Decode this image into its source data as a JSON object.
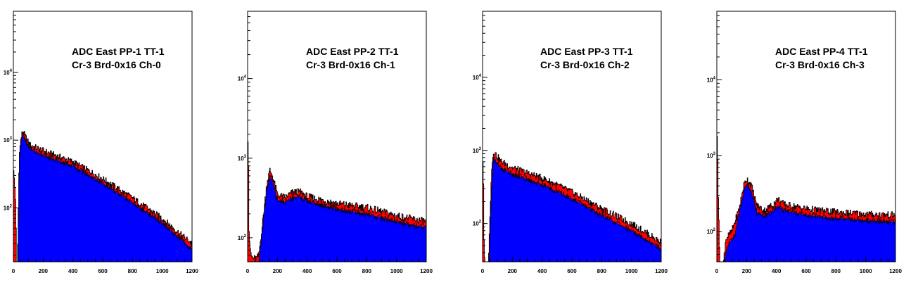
{
  "chart_data": [
    {
      "type": "area",
      "title_line1": "ADC East PP-1 TT-1",
      "title_line2": "Cr-3 Brd-0x16 Ch-0",
      "xlim": [
        0,
        1200
      ],
      "ylog": true,
      "ylim": [
        16,
        80000
      ],
      "x_ticks": [
        "0",
        "200",
        "400",
        "600",
        "800",
        "1000",
        "1200"
      ],
      "y_ticks": [
        {
          "value": 100,
          "label": "10^2"
        },
        {
          "value": 1000,
          "label": "10^3"
        },
        {
          "value": 10000,
          "label": "10^4"
        }
      ],
      "ped_peak": 320,
      "red_points": [
        [
          0,
          400
        ],
        [
          5,
          300
        ],
        [
          10,
          200
        ],
        [
          15,
          120
        ],
        [
          22,
          16
        ],
        [
          28,
          16
        ],
        [
          40,
          600
        ],
        [
          50,
          1000
        ],
        [
          60,
          1300
        ],
        [
          65,
          1350
        ],
        [
          80,
          1150
        ],
        [
          110,
          850
        ],
        [
          200,
          700
        ],
        [
          400,
          480
        ],
        [
          600,
          270
        ],
        [
          800,
          140
        ],
        [
          1000,
          70
        ],
        [
          1100,
          45
        ],
        [
          1200,
          30
        ]
      ],
      "blue_points": [
        [
          30,
          16
        ],
        [
          40,
          500
        ],
        [
          50,
          900
        ],
        [
          60,
          1150
        ],
        [
          65,
          1200
        ],
        [
          80,
          1000
        ],
        [
          110,
          750
        ],
        [
          200,
          600
        ],
        [
          400,
          420
        ],
        [
          600,
          230
        ],
        [
          800,
          120
        ],
        [
          1000,
          60
        ],
        [
          1100,
          38
        ],
        [
          1200,
          25
        ]
      ]
    },
    {
      "type": "area",
      "title_line1": "ADC East PP-2 TT-1",
      "title_line2": "Cr-3 Brd-0x16 Ch-1",
      "xlim": [
        0,
        1200
      ],
      "ylog": true,
      "ylim": [
        50,
        70000
      ],
      "x_ticks": [
        "0",
        "200",
        "400",
        "600",
        "800",
        "1000",
        "1200"
      ],
      "y_ticks": [
        {
          "value": 100,
          "label": "10^2"
        },
        {
          "value": 1000,
          "label": "10^3"
        },
        {
          "value": 10000,
          "label": "10^4"
        }
      ],
      "ped_peak": 1600,
      "red_points": [
        [
          0,
          800
        ],
        [
          5,
          300
        ],
        [
          10,
          120
        ],
        [
          15,
          80
        ],
        [
          25,
          60
        ],
        [
          40,
          55
        ],
        [
          60,
          55
        ],
        [
          75,
          60
        ],
        [
          100,
          150
        ],
        [
          130,
          500
        ],
        [
          150,
          700
        ],
        [
          165,
          620
        ],
        [
          200,
          350
        ],
        [
          250,
          320
        ],
        [
          300,
          370
        ],
        [
          350,
          380
        ],
        [
          400,
          330
        ],
        [
          600,
          270
        ],
        [
          800,
          240
        ],
        [
          1000,
          190
        ],
        [
          1200,
          160
        ]
      ],
      "blue_points": [
        [
          75,
          50
        ],
        [
          100,
          130
        ],
        [
          130,
          420
        ],
        [
          150,
          580
        ],
        [
          165,
          520
        ],
        [
          200,
          300
        ],
        [
          250,
          280
        ],
        [
          300,
          320
        ],
        [
          350,
          330
        ],
        [
          400,
          290
        ],
        [
          600,
          230
        ],
        [
          800,
          200
        ],
        [
          1000,
          160
        ],
        [
          1200,
          135
        ]
      ]
    },
    {
      "type": "area",
      "title_line1": "ADC East PP-3 TT-1",
      "title_line2": "Cr-3 Brd-0x16 Ch-2",
      "xlim": [
        0,
        1200
      ],
      "ylog": true,
      "ylim": [
        30,
        80000
      ],
      "x_ticks": [
        "0",
        "200",
        "400",
        "600",
        "800",
        "1000",
        "1200"
      ],
      "y_ticks": [
        {
          "value": 100,
          "label": "10^2"
        },
        {
          "value": 1000,
          "label": "10^3"
        },
        {
          "value": 10000,
          "label": "10^4"
        }
      ],
      "ped_peak": 700,
      "red_points": [
        [
          0,
          300
        ],
        [
          5,
          120
        ],
        [
          10,
          60
        ],
        [
          15,
          30
        ],
        [
          40,
          30
        ],
        [
          50,
          120
        ],
        [
          60,
          550
        ],
        [
          75,
          1000
        ],
        [
          90,
          880
        ],
        [
          120,
          720
        ],
        [
          200,
          580
        ],
        [
          400,
          420
        ],
        [
          600,
          270
        ],
        [
          800,
          160
        ],
        [
          1000,
          100
        ],
        [
          1100,
          75
        ],
        [
          1200,
          55
        ]
      ],
      "blue_points": [
        [
          45,
          30
        ],
        [
          55,
          150
        ],
        [
          65,
          480
        ],
        [
          75,
          820
        ],
        [
          90,
          700
        ],
        [
          120,
          580
        ],
        [
          200,
          480
        ],
        [
          400,
          340
        ],
        [
          600,
          220
        ],
        [
          800,
          130
        ],
        [
          1000,
          80
        ],
        [
          1100,
          60
        ],
        [
          1200,
          45
        ]
      ]
    },
    {
      "type": "area",
      "title_line1": "ADC East PP-4 TT-1",
      "title_line2": "Cr-3 Brd-0x16 Ch-3",
      "xlim": [
        0,
        1200
      ],
      "ylog": true,
      "ylim": [
        40,
        80000
      ],
      "x_ticks": [
        "0",
        "200",
        "400",
        "600",
        "800",
        "1000",
        "1200"
      ],
      "y_ticks": [
        {
          "value": 100,
          "label": "10^2"
        },
        {
          "value": 1000,
          "label": "10^3"
        },
        {
          "value": 10000,
          "label": "10^4"
        }
      ],
      "ped_peak": 1800,
      "red_points": [
        [
          0,
          1000
        ],
        [
          8,
          400
        ],
        [
          15,
          120
        ],
        [
          20,
          40
        ],
        [
          45,
          40
        ],
        [
          60,
          80
        ],
        [
          100,
          100
        ],
        [
          150,
          200
        ],
        [
          180,
          400
        ],
        [
          200,
          500
        ],
        [
          230,
          420
        ],
        [
          270,
          220
        ],
        [
          320,
          190
        ],
        [
          380,
          230
        ],
        [
          410,
          270
        ],
        [
          450,
          230
        ],
        [
          600,
          200
        ],
        [
          800,
          180
        ],
        [
          1000,
          170
        ],
        [
          1200,
          165
        ]
      ],
      "blue_points": [
        [
          50,
          40
        ],
        [
          80,
          70
        ],
        [
          120,
          90
        ],
        [
          150,
          170
        ],
        [
          180,
          340
        ],
        [
          200,
          420
        ],
        [
          230,
          350
        ],
        [
          270,
          180
        ],
        [
          320,
          160
        ],
        [
          380,
          190
        ],
        [
          410,
          220
        ],
        [
          450,
          190
        ],
        [
          600,
          165
        ],
        [
          800,
          150
        ],
        [
          1000,
          140
        ],
        [
          1200,
          135
        ]
      ]
    }
  ]
}
